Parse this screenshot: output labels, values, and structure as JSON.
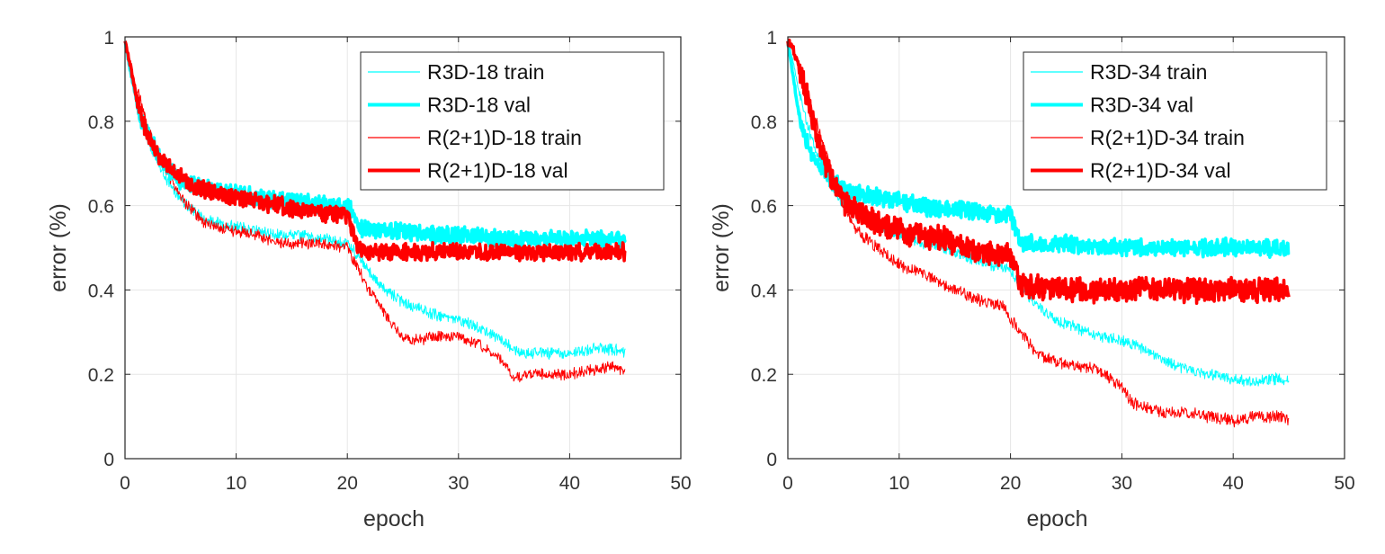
{
  "chart_data": [
    {
      "type": "line",
      "title": "",
      "xlabel": "epoch",
      "ylabel": "error (%)",
      "xlim": [
        0,
        50
      ],
      "ylim": [
        0,
        1
      ],
      "xticks": [
        "0",
        "10",
        "20",
        "30",
        "40",
        "50"
      ],
      "yticks": [
        "0",
        "0.2",
        "0.4",
        "0.6",
        "0.8",
        "1"
      ],
      "grid": true,
      "legend_position": "top-right",
      "series": [
        {
          "name": "R3D-18 train",
          "color": "#00FFFF",
          "width": "thin",
          "noise": 0.012,
          "x": [
            0,
            0.5,
            1,
            1.5,
            2,
            3,
            4,
            5,
            6,
            7,
            8,
            10,
            12,
            14,
            16,
            18,
            20,
            21,
            22,
            23,
            24,
            25,
            26,
            28,
            30,
            32,
            34,
            35,
            36,
            38,
            40,
            42,
            44,
            45
          ],
          "y": [
            0.99,
            0.93,
            0.85,
            0.8,
            0.76,
            0.7,
            0.65,
            0.62,
            0.59,
            0.57,
            0.56,
            0.55,
            0.54,
            0.53,
            0.53,
            0.52,
            0.51,
            0.48,
            0.44,
            0.41,
            0.39,
            0.37,
            0.36,
            0.34,
            0.33,
            0.31,
            0.28,
            0.26,
            0.25,
            0.25,
            0.25,
            0.26,
            0.26,
            0.25
          ]
        },
        {
          "name": "R3D-18 val",
          "color": "#00FFFF",
          "width": "thick",
          "noise": 0.018,
          "x": [
            0,
            0.5,
            1,
            1.5,
            2,
            3,
            4,
            5,
            6,
            8,
            10,
            12,
            14,
            16,
            18,
            20,
            20.5,
            21,
            22,
            25,
            28,
            30,
            35,
            40,
            45
          ],
          "y": [
            0.99,
            0.92,
            0.85,
            0.8,
            0.77,
            0.72,
            0.68,
            0.66,
            0.65,
            0.64,
            0.63,
            0.62,
            0.61,
            0.61,
            0.6,
            0.6,
            0.58,
            0.55,
            0.54,
            0.54,
            0.53,
            0.53,
            0.52,
            0.52,
            0.52
          ]
        },
        {
          "name": "R(2+1)D-18 train",
          "color": "#FF0000",
          "width": "thin",
          "noise": 0.012,
          "x": [
            0,
            0.5,
            1,
            1.5,
            2,
            3,
            4,
            5,
            6,
            7,
            8,
            10,
            12,
            14,
            16,
            18,
            20,
            21,
            22,
            23,
            24,
            25,
            26,
            28,
            30,
            32,
            34,
            35,
            36,
            38,
            40,
            42,
            44,
            45
          ],
          "y": [
            0.99,
            0.94,
            0.88,
            0.84,
            0.79,
            0.72,
            0.67,
            0.62,
            0.59,
            0.56,
            0.55,
            0.54,
            0.53,
            0.51,
            0.51,
            0.51,
            0.5,
            0.45,
            0.4,
            0.36,
            0.32,
            0.29,
            0.28,
            0.29,
            0.29,
            0.27,
            0.23,
            0.19,
            0.2,
            0.2,
            0.2,
            0.21,
            0.22,
            0.2
          ]
        },
        {
          "name": "R(2+1)D-18 val",
          "color": "#FF0000",
          "width": "thick",
          "noise": 0.018,
          "x": [
            0,
            0.5,
            1,
            1.5,
            2,
            3,
            4,
            5,
            6,
            8,
            10,
            12,
            14,
            16,
            18,
            20,
            20.5,
            21,
            22,
            25,
            28,
            30,
            35,
            40,
            45
          ],
          "y": [
            0.99,
            0.93,
            0.86,
            0.81,
            0.77,
            0.72,
            0.69,
            0.67,
            0.65,
            0.63,
            0.62,
            0.61,
            0.6,
            0.59,
            0.58,
            0.58,
            0.54,
            0.5,
            0.49,
            0.49,
            0.49,
            0.49,
            0.49,
            0.49,
            0.49
          ]
        }
      ]
    },
    {
      "type": "line",
      "title": "",
      "xlabel": "epoch",
      "ylabel": "error (%)",
      "xlim": [
        0,
        50
      ],
      "ylim": [
        0,
        1
      ],
      "xticks": [
        "0",
        "10",
        "20",
        "30",
        "40",
        "50"
      ],
      "yticks": [
        "0",
        "0.2",
        "0.4",
        "0.6",
        "0.8",
        "1"
      ],
      "grid": true,
      "legend_position": "top-right",
      "series": [
        {
          "name": "R3D-34 train",
          "color": "#00FFFF",
          "width": "thin",
          "noise": 0.012,
          "x": [
            0,
            0.5,
            1,
            1.5,
            2,
            3,
            4,
            5,
            6,
            8,
            10,
            12,
            14,
            16,
            18,
            20,
            21,
            22,
            23,
            24,
            25,
            26,
            28,
            30,
            32,
            34,
            36,
            38,
            40,
            42,
            44,
            45
          ],
          "y": [
            0.99,
            0.94,
            0.87,
            0.82,
            0.77,
            0.7,
            0.64,
            0.6,
            0.58,
            0.55,
            0.53,
            0.51,
            0.5,
            0.48,
            0.46,
            0.45,
            0.4,
            0.37,
            0.35,
            0.33,
            0.32,
            0.31,
            0.29,
            0.28,
            0.26,
            0.23,
            0.21,
            0.2,
            0.19,
            0.18,
            0.19,
            0.18
          ]
        },
        {
          "name": "R3D-34 val",
          "color": "#00FFFF",
          "width": "thick",
          "noise": 0.018,
          "x": [
            0,
            0.5,
            1,
            1.5,
            2,
            3,
            4,
            5,
            6,
            8,
            10,
            12,
            14,
            16,
            18,
            20,
            20.5,
            21,
            22,
            25,
            28,
            30,
            35,
            40,
            45
          ],
          "y": [
            0.99,
            0.9,
            0.82,
            0.77,
            0.73,
            0.69,
            0.66,
            0.64,
            0.63,
            0.62,
            0.61,
            0.6,
            0.59,
            0.59,
            0.58,
            0.58,
            0.54,
            0.51,
            0.51,
            0.51,
            0.5,
            0.5,
            0.5,
            0.5,
            0.5
          ]
        },
        {
          "name": "R(2+1)D-34 train",
          "color": "#FF0000",
          "width": "thin",
          "noise": 0.013,
          "x": [
            0,
            0.5,
            1,
            1.5,
            2,
            3,
            4,
            5,
            6,
            7,
            8,
            10,
            12,
            14,
            16,
            18,
            19.5,
            20,
            21,
            22,
            23,
            24,
            26,
            28,
            30,
            31,
            32,
            34,
            36,
            38,
            40,
            42,
            44,
            45
          ],
          "y": [
            0.99,
            0.97,
            0.93,
            0.88,
            0.84,
            0.76,
            0.67,
            0.6,
            0.55,
            0.52,
            0.5,
            0.46,
            0.44,
            0.41,
            0.39,
            0.37,
            0.36,
            0.33,
            0.3,
            0.26,
            0.24,
            0.23,
            0.22,
            0.21,
            0.17,
            0.13,
            0.12,
            0.11,
            0.11,
            0.1,
            0.09,
            0.1,
            0.1,
            0.09
          ]
        },
        {
          "name": "R(2+1)D-34 val",
          "color": "#FF0000",
          "width": "thick",
          "noise": 0.025,
          "x": [
            0,
            0.5,
            1,
            1.5,
            2,
            3,
            4,
            5,
            6,
            8,
            10,
            12,
            14,
            16,
            18,
            20,
            20.5,
            21,
            22,
            25,
            28,
            30,
            35,
            40,
            45
          ],
          "y": [
            0.99,
            0.97,
            0.93,
            0.88,
            0.83,
            0.73,
            0.66,
            0.61,
            0.59,
            0.56,
            0.54,
            0.53,
            0.52,
            0.5,
            0.49,
            0.48,
            0.44,
            0.41,
            0.41,
            0.4,
            0.4,
            0.4,
            0.4,
            0.4,
            0.4
          ]
        }
      ]
    }
  ]
}
